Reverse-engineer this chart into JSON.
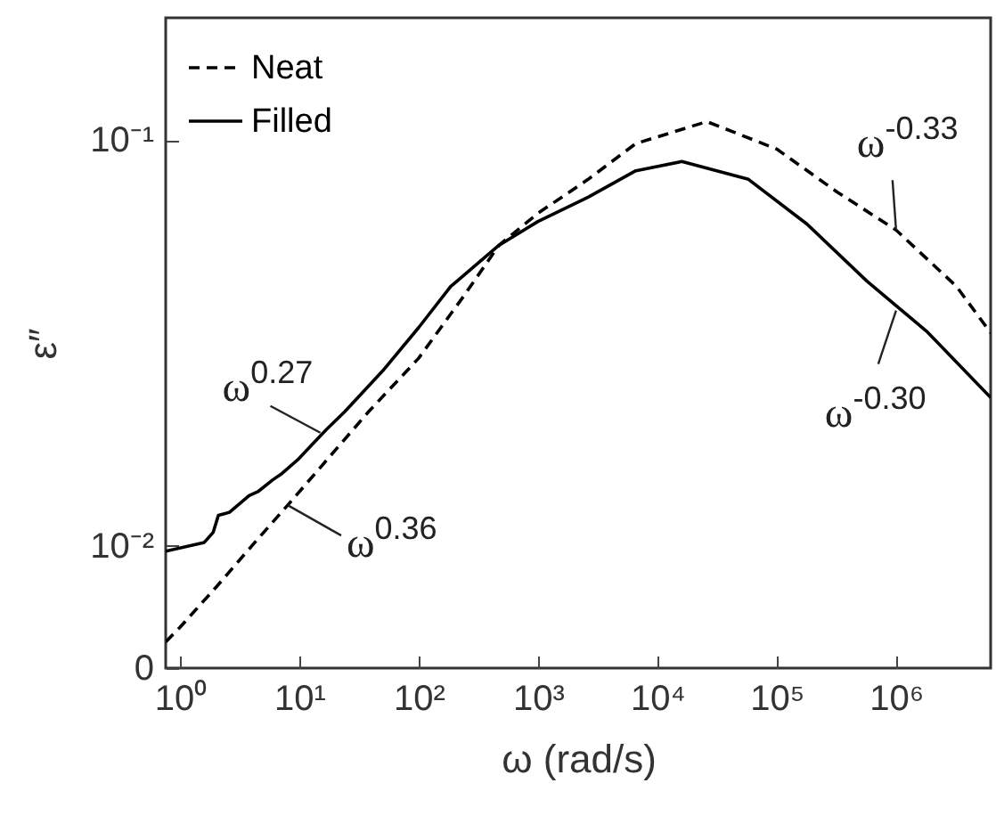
{
  "chart_data": {
    "type": "line",
    "xlabel": "ω (rad/s)",
    "ylabel": "ε″",
    "log": "xy",
    "xlim": [
      0.76,
      6200000
    ],
    "ylim": [
      0.005,
      0.2
    ],
    "xticks": [
      {
        "value": 1,
        "label": "10⁰"
      },
      {
        "value": 10,
        "label": "10¹"
      },
      {
        "value": 100,
        "label": "10²"
      },
      {
        "value": 1000,
        "label": "10³"
      },
      {
        "value": 10000,
        "label": "10⁴"
      },
      {
        "value": 100000,
        "label": "10⁵"
      },
      {
        "value": 1000000,
        "label": "10⁶"
      }
    ],
    "yticks": [
      {
        "value": 0.005,
        "label": "0"
      },
      {
        "value": 0.01,
        "label": "10⁻²"
      },
      {
        "value": 0.1,
        "label": "10⁻¹"
      }
    ],
    "legend": "top left",
    "series": [
      {
        "name": "Neat",
        "color": "#000000",
        "line_style": "dashed",
        "x": [
          0.76,
          1,
          2,
          4,
          8,
          15,
          38,
          100,
          235,
          470,
          1000,
          2630,
          6600,
          26000,
          100000,
          320000,
          1000000,
          3200000,
          6200000
        ],
        "values": [
          0.0058,
          0.0063,
          0.0079,
          0.01,
          0.0126,
          0.0156,
          0.0214,
          0.029,
          0.041,
          0.055,
          0.066,
          0.08,
          0.098,
          0.111,
          0.095,
          0.0745,
          0.06,
          0.0436,
          0.0335
        ]
      },
      {
        "name": "Filled",
        "color": "#000000",
        "line_style": "solid",
        "x": [
          0.76,
          1.6,
          1.9,
          2.1,
          2.6,
          3.8,
          4.5,
          6,
          7,
          9.7,
          16.7,
          24,
          50,
          100,
          186,
          470,
          1000,
          2630,
          6600,
          16000,
          58000,
          180000,
          570000,
          1800000,
          6200000
        ],
        "values": [
          0.0097,
          0.0102,
          0.0108,
          0.0119,
          0.0121,
          0.0133,
          0.0136,
          0.01455,
          0.015,
          0.0163,
          0.0193,
          0.0214,
          0.027,
          0.0345,
          0.0436,
          0.055,
          0.063,
          0.0723,
          0.084,
          0.0885,
          0.08,
          0.062,
          0.0449,
          0.0338,
          0.0232
        ]
      }
    ],
    "annotations": [
      {
        "text": "ω$^{0.27}$",
        "x": 15,
        "y": 0.019
      },
      {
        "text": "ω$^{0.36}$",
        "x": 8,
        "y": 0.0126
      },
      {
        "text": "ω$^{-0.33}$",
        "x": 1000000,
        "y": 0.06
      },
      {
        "text": "ω$^{-0.30}$",
        "x": 1000000,
        "y": 0.038
      }
    ]
  }
}
